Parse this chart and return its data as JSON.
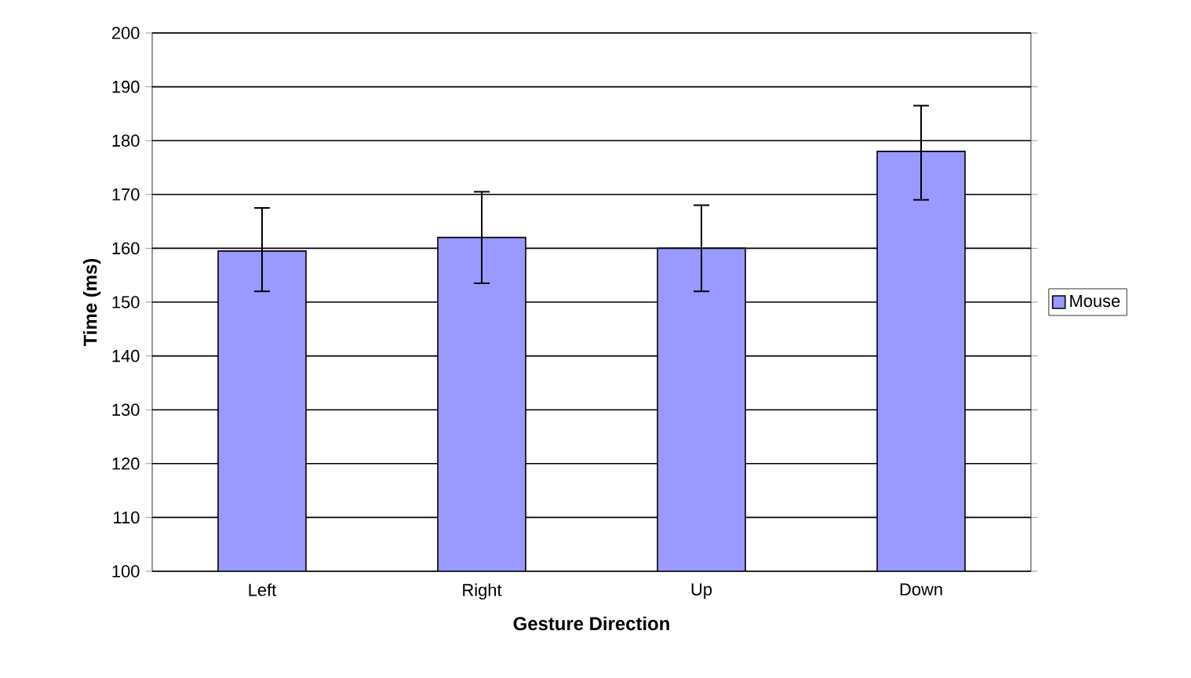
{
  "chart_data": {
    "type": "bar",
    "xlabel": "Gesture Direction",
    "ylabel": "Time (ms)",
    "categories": [
      "Left",
      "Right",
      "Up",
      "Down"
    ],
    "series": [
      {
        "name": "Mouse",
        "color": "#9999ff",
        "values": [
          159.5,
          162,
          160,
          178
        ],
        "errors": [
          [
            152,
            167.5
          ],
          [
            153.5,
            170.5
          ],
          [
            152,
            168
          ],
          [
            169,
            186.5
          ]
        ]
      }
    ],
    "ylim": [
      100,
      200
    ],
    "yticks": [
      100,
      110,
      120,
      130,
      140,
      150,
      160,
      170,
      180,
      190,
      200
    ],
    "grid": "y",
    "legend": "right"
  }
}
